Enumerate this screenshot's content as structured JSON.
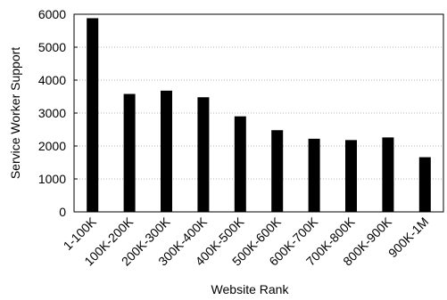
{
  "chart_data": {
    "type": "bar",
    "categories": [
      "1-100K",
      "100K-200K",
      "200K-300K",
      "300K-400K",
      "400K-500K",
      "500K-600K",
      "600K-700K",
      "700K-800K",
      "800K-900K",
      "900K-1M"
    ],
    "values": [
      5880,
      3580,
      3680,
      3480,
      2900,
      2480,
      2220,
      2180,
      2260,
      1660
    ],
    "title": "",
    "xlabel": "Website Rank",
    "ylabel": "Service Worker Support",
    "ylim": [
      0,
      6000
    ],
    "yticks": [
      0,
      1000,
      2000,
      3000,
      4000,
      5000,
      6000
    ],
    "grid": "horizontal dotted",
    "legend": "none",
    "bar_color": "#000000"
  }
}
